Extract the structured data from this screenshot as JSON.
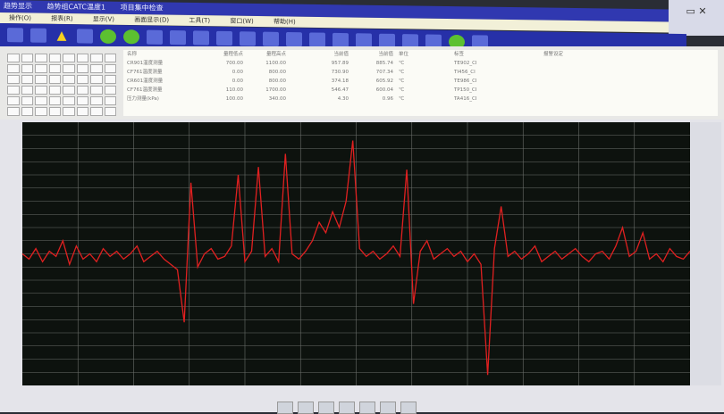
{
  "window": {
    "tabs": [
      "趋势显示",
      "趋势组CATC温度1",
      "项目集中检查"
    ],
    "menu": [
      "操作(O)",
      "报表(R)",
      "显示(V)",
      "画面显示(D)",
      "工具(T)",
      "窗口(W)",
      "帮助(H)"
    ]
  },
  "toolbar": {
    "icons": [
      "menu-icon",
      "display-icon",
      "alarm-warning-icon",
      "help-icon",
      "back-icon",
      "forward-icon",
      "save-icon",
      "image-icon",
      "window-icon",
      "window-icon",
      "window-icon",
      "window-icon",
      "print-icon",
      "print-icon",
      "layout-icon",
      "list-icon",
      "alarm-ack-icon",
      "alarm-icon",
      "settings-icon",
      "ok-icon",
      "pin-icon"
    ]
  },
  "table": {
    "headers": [
      "名称",
      "量程低点",
      "量程高点",
      "当前值",
      "当前值",
      "单位",
      "标签",
      "报警设定"
    ],
    "rows": [
      [
        "CR901温度测量",
        "700.00",
        "1100.00",
        "957.89",
        "885.74",
        "℃",
        "TE902_CI"
      ],
      [
        "CF761温度测量",
        "0.00",
        "800.00",
        "730.90",
        "707.34",
        "℃",
        "TI456_CI"
      ],
      [
        "CR601温度测量",
        "0.00",
        "800.00",
        "374.18",
        "605.92",
        "℃",
        "TE986_CI"
      ],
      [
        "CF761温度测量",
        "110.00",
        "1700.00",
        "546.47",
        "600.04",
        "℃",
        "TP150_CI"
      ],
      [
        "压力测量(kPa)",
        "100.00",
        "340.00",
        "4.30",
        "0.96",
        "℃",
        "TA416_CI"
      ]
    ]
  },
  "chart_data": {
    "type": "line",
    "title": "",
    "xlabel": "",
    "ylabel": "",
    "ylim": [
      0,
      100
    ],
    "grid": true,
    "series": [
      {
        "color": "#e02020",
        "values": [
          50,
          48,
          52,
          47,
          51,
          49,
          55,
          46,
          53,
          48,
          50,
          47,
          52,
          49,
          51,
          48,
          50,
          53,
          47,
          49,
          51,
          48,
          46,
          44,
          24,
          77,
          45,
          50,
          52,
          48,
          49,
          53,
          80,
          47,
          51,
          83,
          49,
          52,
          47,
          88,
          50,
          48,
          51,
          55,
          62,
          58,
          66,
          60,
          70,
          93,
          52,
          49,
          51,
          48,
          50,
          53,
          49,
          82,
          31,
          51,
          55,
          48,
          50,
          52,
          49,
          51,
          47,
          50,
          46,
          4,
          52,
          68,
          49,
          51,
          48,
          50,
          53,
          47,
          49,
          51,
          48,
          50,
          52,
          49,
          47,
          50,
          51,
          48,
          53,
          60,
          49,
          51,
          58,
          48,
          50,
          47,
          52,
          49,
          48,
          51
        ]
      }
    ]
  },
  "bottom": {
    "buttons": [
      "first-icon",
      "prev-icon",
      "play-icon",
      "next-icon",
      "last-icon",
      "zoom-icon",
      "settings-icon"
    ]
  }
}
